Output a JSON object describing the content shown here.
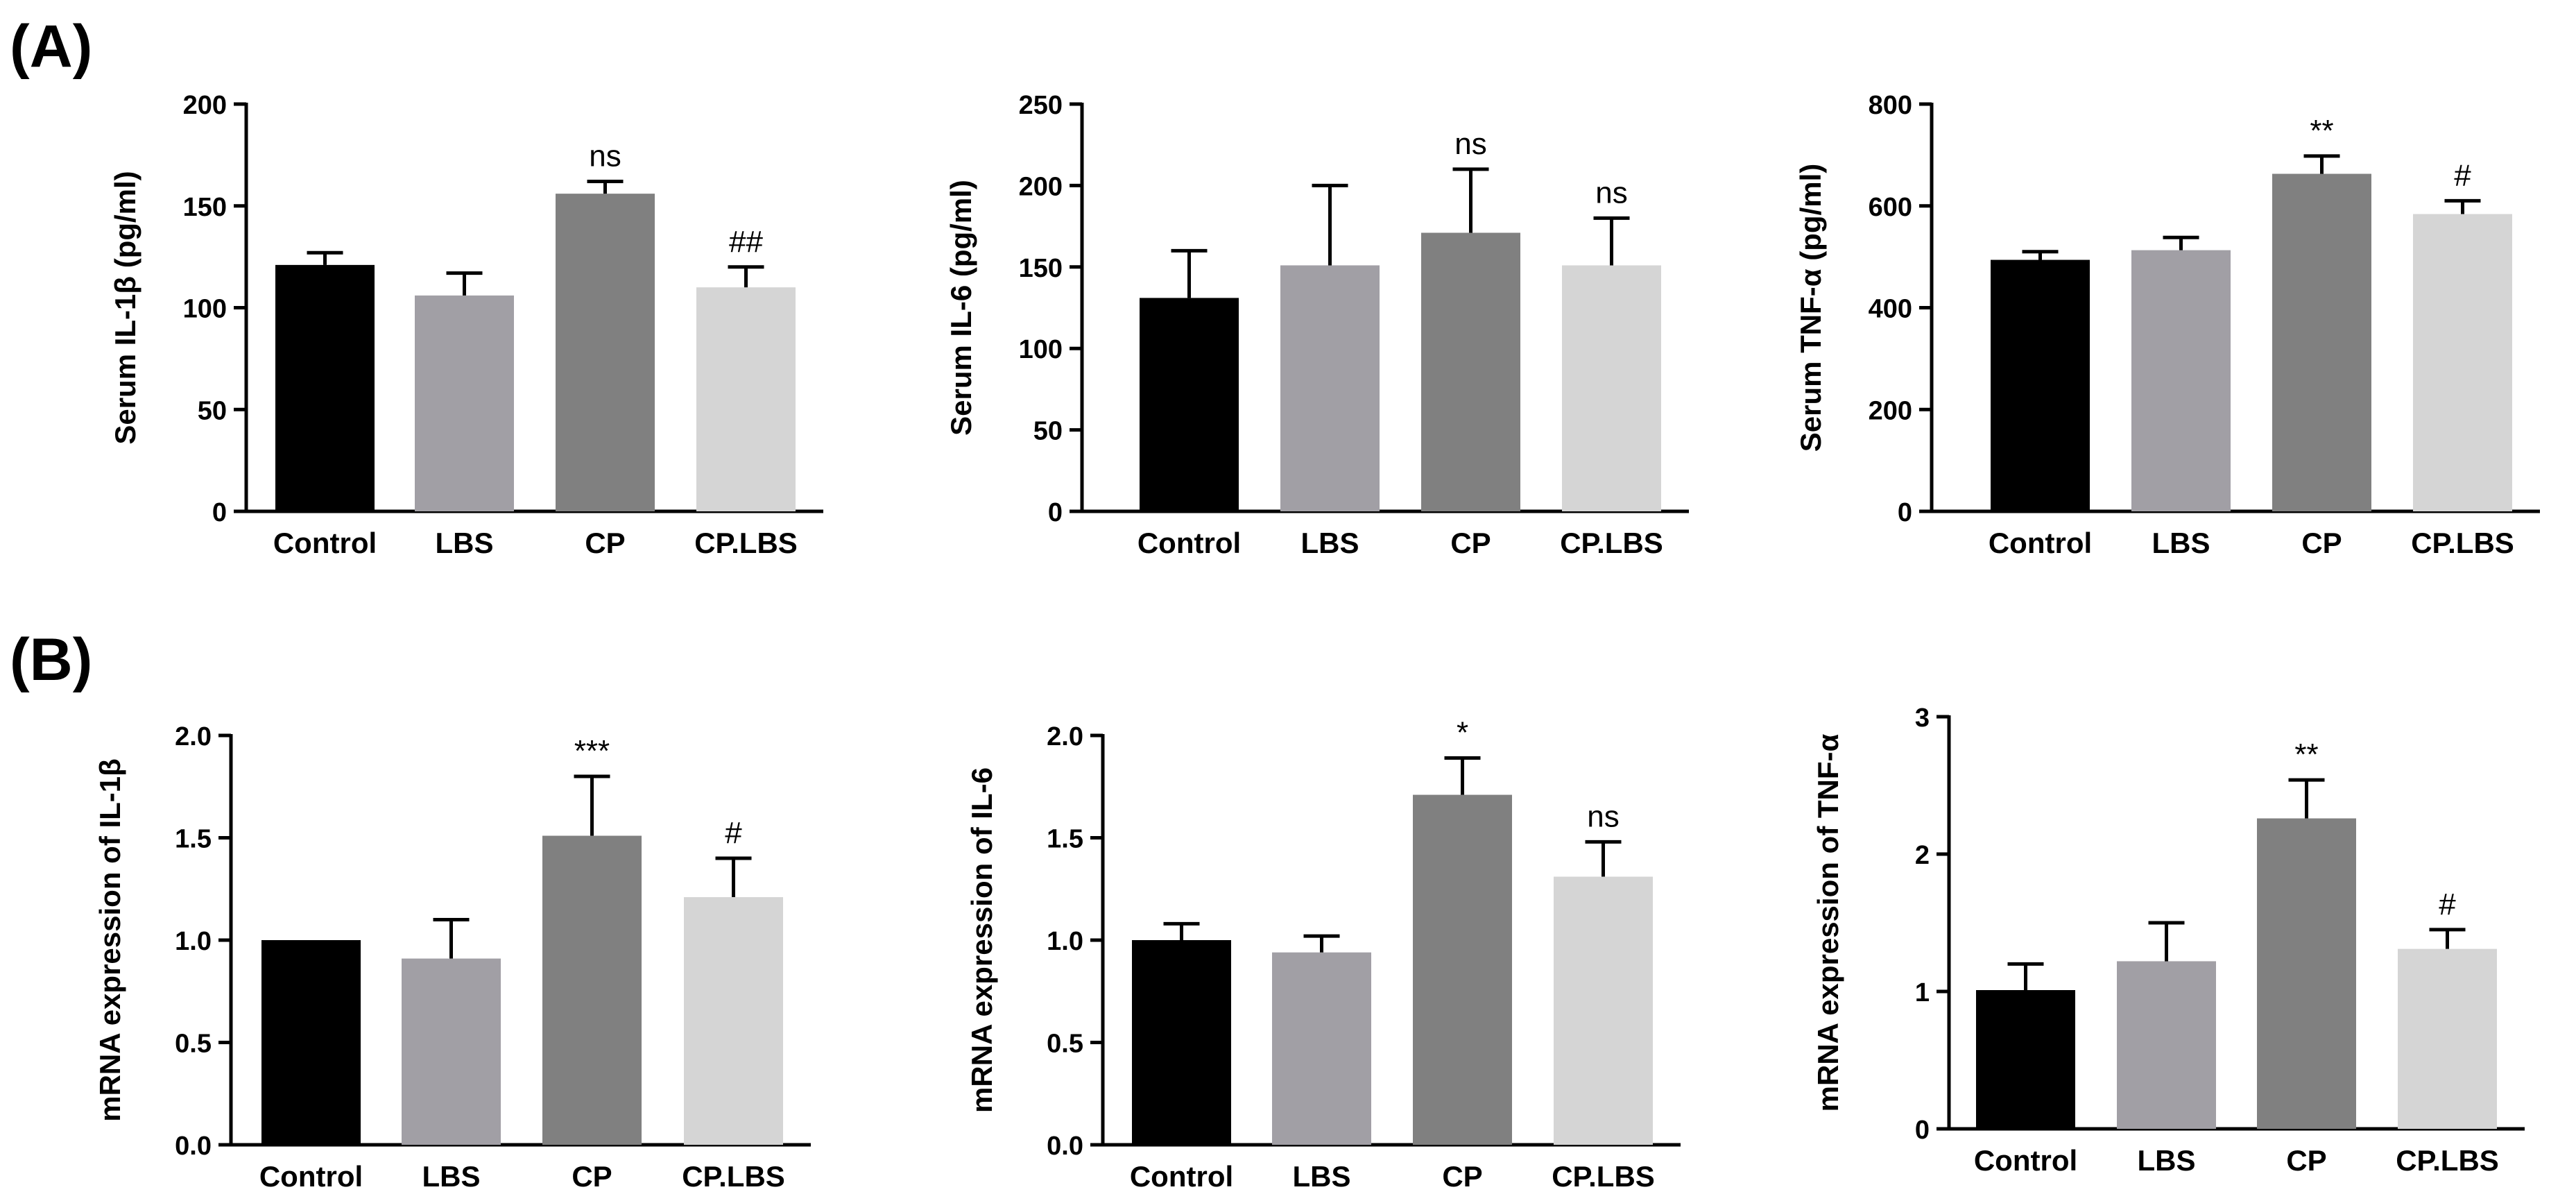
{
  "panels": {
    "a": "(A)",
    "b": "(B)"
  },
  "colors": {
    "Control": "#000000",
    "LBS": "#a19fa5",
    "CP": "#808080",
    "CP.LBS": "#d5d5d5"
  },
  "chart_data": [
    {
      "type": "bar",
      "panel": "(A)",
      "categories": [
        "Control",
        "LBS",
        "CP",
        "CP.LBS"
      ],
      "values": [
        121,
        106,
        156,
        110
      ],
      "errors": [
        6,
        11,
        6,
        10
      ],
      "annotations": [
        "",
        "",
        "ns",
        "##"
      ],
      "ylabel": "Serum IL-1β (pg/ml)",
      "ylim": [
        0,
        200
      ],
      "yticks": [
        0,
        50,
        100,
        150,
        200
      ],
      "ytick_labels": [
        "0",
        "50",
        "100",
        "150",
        "200"
      ]
    },
    {
      "type": "bar",
      "panel": "(A)",
      "categories": [
        "Control",
        "LBS",
        "CP",
        "CP.LBS"
      ],
      "values": [
        131,
        151,
        171,
        151
      ],
      "errors": [
        29,
        49,
        39,
        29
      ],
      "annotations": [
        "",
        "",
        "ns",
        "ns"
      ],
      "ylabel": "Serum IL-6 (pg/ml)",
      "ylim": [
        0,
        250
      ],
      "yticks": [
        0,
        50,
        100,
        150,
        200,
        250
      ],
      "ytick_labels": [
        "0",
        "50",
        "100",
        "150",
        "200",
        "250"
      ]
    },
    {
      "type": "bar",
      "panel": "(A)",
      "categories": [
        "Control",
        "LBS",
        "CP",
        "CP.LBS"
      ],
      "values": [
        494,
        513,
        663,
        584
      ],
      "errors": [
        16,
        25,
        35,
        26
      ],
      "annotations": [
        "",
        "",
        "**",
        "#"
      ],
      "ylabel": "Serum TNF-α (pg/ml)",
      "ylim": [
        0,
        800
      ],
      "yticks": [
        0,
        200,
        400,
        600,
        800
      ],
      "ytick_labels": [
        "0",
        "200",
        "400",
        "600",
        "800"
      ]
    },
    {
      "type": "bar",
      "panel": "(B)",
      "categories": [
        "Control",
        "LBS",
        "CP",
        "CP.LBS"
      ],
      "values": [
        1.0,
        0.91,
        1.51,
        1.21
      ],
      "errors": [
        0,
        0.19,
        0.29,
        0.19
      ],
      "annotations": [
        "",
        "",
        "***",
        "#"
      ],
      "ylabel": "mRNA expression of IL-1β",
      "ylim": [
        0,
        2.0
      ],
      "yticks": [
        0,
        0.5,
        1.0,
        1.5,
        2.0
      ],
      "ytick_labels": [
        "0.0",
        "0.5",
        "1.0",
        "1.5",
        "2.0"
      ]
    },
    {
      "type": "bar",
      "panel": "(B)",
      "categories": [
        "Control",
        "LBS",
        "CP",
        "CP.LBS"
      ],
      "values": [
        1.0,
        0.94,
        1.71,
        1.31
      ],
      "errors": [
        0.08,
        0.08,
        0.18,
        0.17
      ],
      "annotations": [
        "",
        "",
        "*",
        "ns"
      ],
      "ylabel": "mRNA expression of IL-6",
      "ylim": [
        0,
        2.0
      ],
      "yticks": [
        0,
        0.5,
        1.0,
        1.5,
        2.0
      ],
      "ytick_labels": [
        "0.0",
        "0.5",
        "1.0",
        "1.5",
        "2.0"
      ]
    },
    {
      "type": "bar",
      "panel": "(B)",
      "categories": [
        "Control",
        "LBS",
        "CP",
        "CP.LBS"
      ],
      "values": [
        1.01,
        1.22,
        2.26,
        1.31
      ],
      "errors": [
        0.19,
        0.28,
        0.28,
        0.14
      ],
      "annotations": [
        "",
        "",
        "**",
        "#"
      ],
      "ylabel": "mRNA expression of TNF-α",
      "ylim": [
        0,
        3
      ],
      "yticks": [
        0,
        1,
        2,
        3
      ],
      "ytick_labels": [
        "0",
        "1",
        "2",
        "3"
      ]
    }
  ]
}
